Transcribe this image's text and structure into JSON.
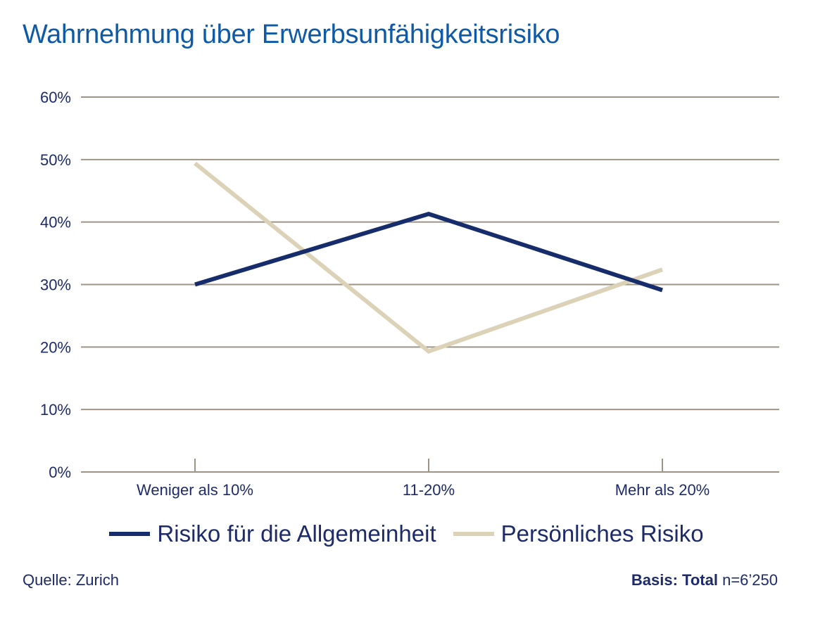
{
  "title": "Wahrnehmung über Erwerbsunfähigkeitsrisiko",
  "colors": {
    "title": "#0e5aa7",
    "text": "#1d2b6b",
    "grid": "#9d9486",
    "series_1": "#172c6b",
    "series_2": "#dcd2b8"
  },
  "chart_data": {
    "type": "line",
    "title": "Wahrnehmung über Erwerbsunfähigkeitsrisiko",
    "xlabel": "",
    "ylabel": "",
    "categories": [
      "Weniger als 10%",
      "11-20%",
      "Mehr als  20%"
    ],
    "yticks": [
      "0%",
      "10%",
      "20%",
      "30%",
      "40%",
      "50%",
      "60%"
    ],
    "ylim": [
      0,
      60
    ],
    "grid": true,
    "legend_position": "bottom",
    "series": [
      {
        "name": "Risiko für die Allgemeinheit",
        "values": [
          30,
          41.3,
          29.1
        ],
        "color": "#172c6b"
      },
      {
        "name": "Persönliches Risiko",
        "values": [
          49.4,
          19.3,
          32.4
        ],
        "color": "#dcd2b8"
      }
    ]
  },
  "footer": {
    "source": "Quelle: Zurich",
    "basis_label": "Basis: Total",
    "basis_value": "n=6’250"
  }
}
